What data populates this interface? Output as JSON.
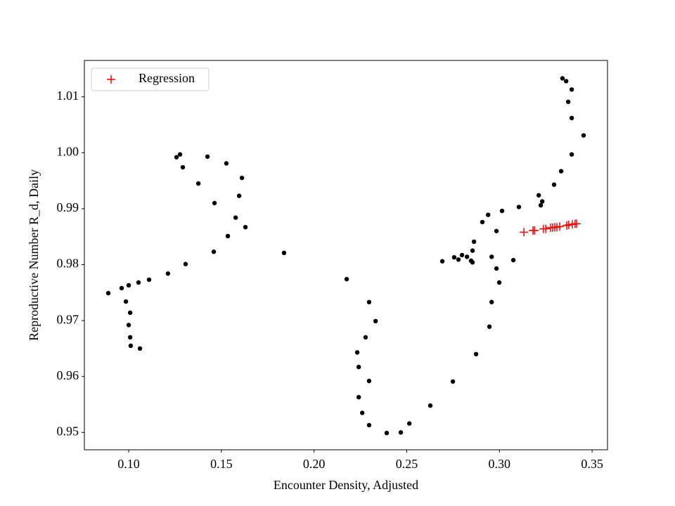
{
  "chart_data": {
    "type": "scatter",
    "x_label": "Encounter Density, Adjusted",
    "y_label": "Reproductive Number R_d, Daily",
    "xlim": [
      0.0761,
      0.3583
    ],
    "ylim": [
      0.9469,
      1.0165
    ],
    "xticks": [
      {
        "value": 0.1,
        "label": "0.10"
      },
      0.15,
      {
        "value": 0.2,
        "label": "0.20"
      },
      0.25,
      {
        "value": 0.3,
        "label": "0.30"
      },
      0.35
    ],
    "yticks": [
      0.95,
      0.96,
      0.97,
      0.98,
      0.99,
      {
        "value": 1.0,
        "label": "1.00"
      },
      1.01
    ],
    "legend": "upper left",
    "series": [
      {
        "color": "#000000",
        "marker": "o",
        "x": [
          0.089,
          0.0962,
          0.1,
          0.1053,
          0.111,
          0.1212,
          0.1307,
          0.0985,
          0.1008,
          0.1,
          0.1008,
          0.1011,
          0.1061,
          0.1258,
          0.1277,
          0.1292,
          0.1376,
          0.1425,
          0.1463,
          0.1459,
          0.1527,
          0.1577,
          0.1596,
          0.1611,
          0.163,
          0.1535,
          0.1838,
          0.2176,
          0.2297,
          0.2332,
          0.2278,
          0.2233,
          0.2241,
          0.2297,
          0.2241,
          0.226,
          0.2297,
          0.2392,
          0.2468,
          0.2514,
          0.2627,
          0.2749,
          0.2874,
          0.2692,
          0.2756,
          0.2779,
          0.2798,
          0.2825,
          0.2847,
          0.2855,
          0.2863,
          0.2855,
          0.2908,
          0.2939,
          0.3014,
          0.2984,
          0.3075,
          0.2958,
          0.2984,
          0.2999,
          0.2958,
          0.2946,
          0.3105,
          0.3212,
          0.3223,
          0.3231,
          0.3295,
          0.3333,
          0.339,
          0.3454,
          0.339,
          0.3371,
          0.339,
          0.334,
          0.336
        ],
        "values": [
          0.9749,
          0.9758,
          0.9763,
          0.9768,
          0.9773,
          0.9784,
          0.9801,
          0.9734,
          0.9714,
          0.9692,
          0.967,
          0.9655,
          0.965,
          0.9992,
          0.9997,
          0.9974,
          0.9945,
          0.9993,
          0.991,
          0.9823,
          0.9981,
          0.9884,
          0.9923,
          0.9955,
          0.9867,
          0.9851,
          0.9821,
          0.9774,
          0.9733,
          0.9699,
          0.967,
          0.9643,
          0.9617,
          0.9592,
          0.9563,
          0.9535,
          0.9513,
          0.9499,
          0.95,
          0.9516,
          0.9548,
          0.9591,
          0.964,
          0.9806,
          0.9813,
          0.9809,
          0.9817,
          0.9814,
          0.9807,
          0.9825,
          0.9841,
          0.9804,
          0.9876,
          0.9889,
          0.9896,
          0.986,
          0.9808,
          0.9814,
          0.9793,
          0.9768,
          0.9733,
          0.9689,
          0.9903,
          0.9924,
          0.9906,
          0.9913,
          0.9943,
          0.9967,
          0.9997,
          1.0031,
          1.0062,
          1.0091,
          1.0113,
          1.0133,
          1.0128
        ]
      },
      {
        "name": "Regression",
        "color": "#ff0000",
        "marker": "+",
        "x": [
          0.3132,
          0.3181,
          0.3189,
          0.3238,
          0.325,
          0.3276,
          0.3287,
          0.3299,
          0.331,
          0.3325,
          0.3363,
          0.3374,
          0.3393,
          0.3408,
          0.3416
        ],
        "values": [
          0.9858,
          0.9861,
          0.9861,
          0.9864,
          0.9864,
          0.9866,
          0.9866,
          0.9867,
          0.9867,
          0.9868,
          0.987,
          0.9871,
          0.9872,
          0.9873,
          0.9873
        ]
      }
    ]
  }
}
